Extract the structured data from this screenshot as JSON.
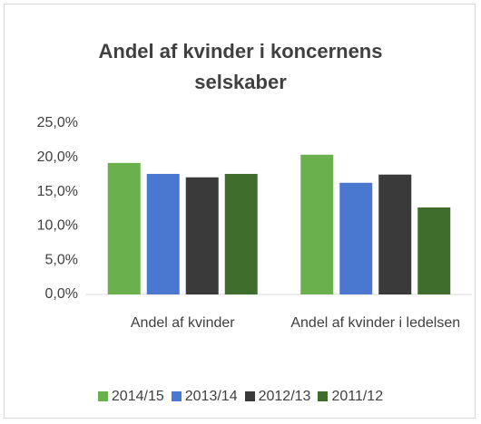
{
  "chart_data": {
    "type": "bar",
    "title": "Andel af kvinder i koncernens selskaber",
    "categories": [
      "Andel af kvinder",
      "Andel af kvinder i ledelsen"
    ],
    "series": [
      {
        "name": "2014/15",
        "color": "#6ab04c",
        "values": [
          19.2,
          20.4
        ]
      },
      {
        "name": "2013/14",
        "color": "#4a78d0",
        "values": [
          17.6,
          16.3
        ]
      },
      {
        "name": "2012/13",
        "color": "#3a3a3a",
        "values": [
          17.1,
          17.5
        ]
      },
      {
        "name": "2011/12",
        "color": "#3f6e2c",
        "values": [
          17.6,
          12.7
        ]
      }
    ],
    "ylim": [
      0,
      25
    ],
    "yticks": [
      {
        "value": 0,
        "label": "0,0%"
      },
      {
        "value": 5,
        "label": "5,0%"
      },
      {
        "value": 10,
        "label": "10,0%"
      },
      {
        "value": 15,
        "label": "15,0%"
      },
      {
        "value": 20,
        "label": "20,0%"
      },
      {
        "value": 25,
        "label": "25,0%"
      }
    ],
    "grid": false,
    "legend": "bottom"
  }
}
